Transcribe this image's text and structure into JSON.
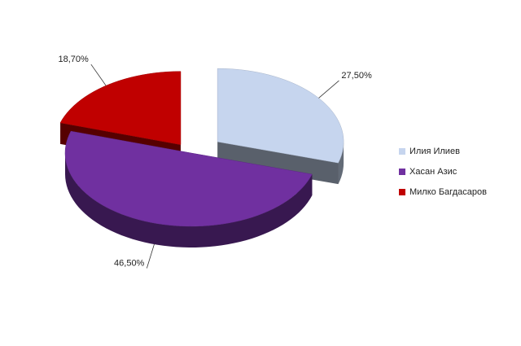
{
  "chart_data": {
    "type": "pie3d",
    "categories": [
      "Илия Илиев",
      "Хасан Азис",
      "Милко Багдасаров"
    ],
    "values": [
      27.5,
      46.5,
      18.7
    ],
    "value_labels": [
      "27,50%",
      "46,50%",
      "18,70%"
    ],
    "colors": [
      "#c6d5ee",
      "#7030a0",
      "#c00000"
    ],
    "legend": "right"
  }
}
